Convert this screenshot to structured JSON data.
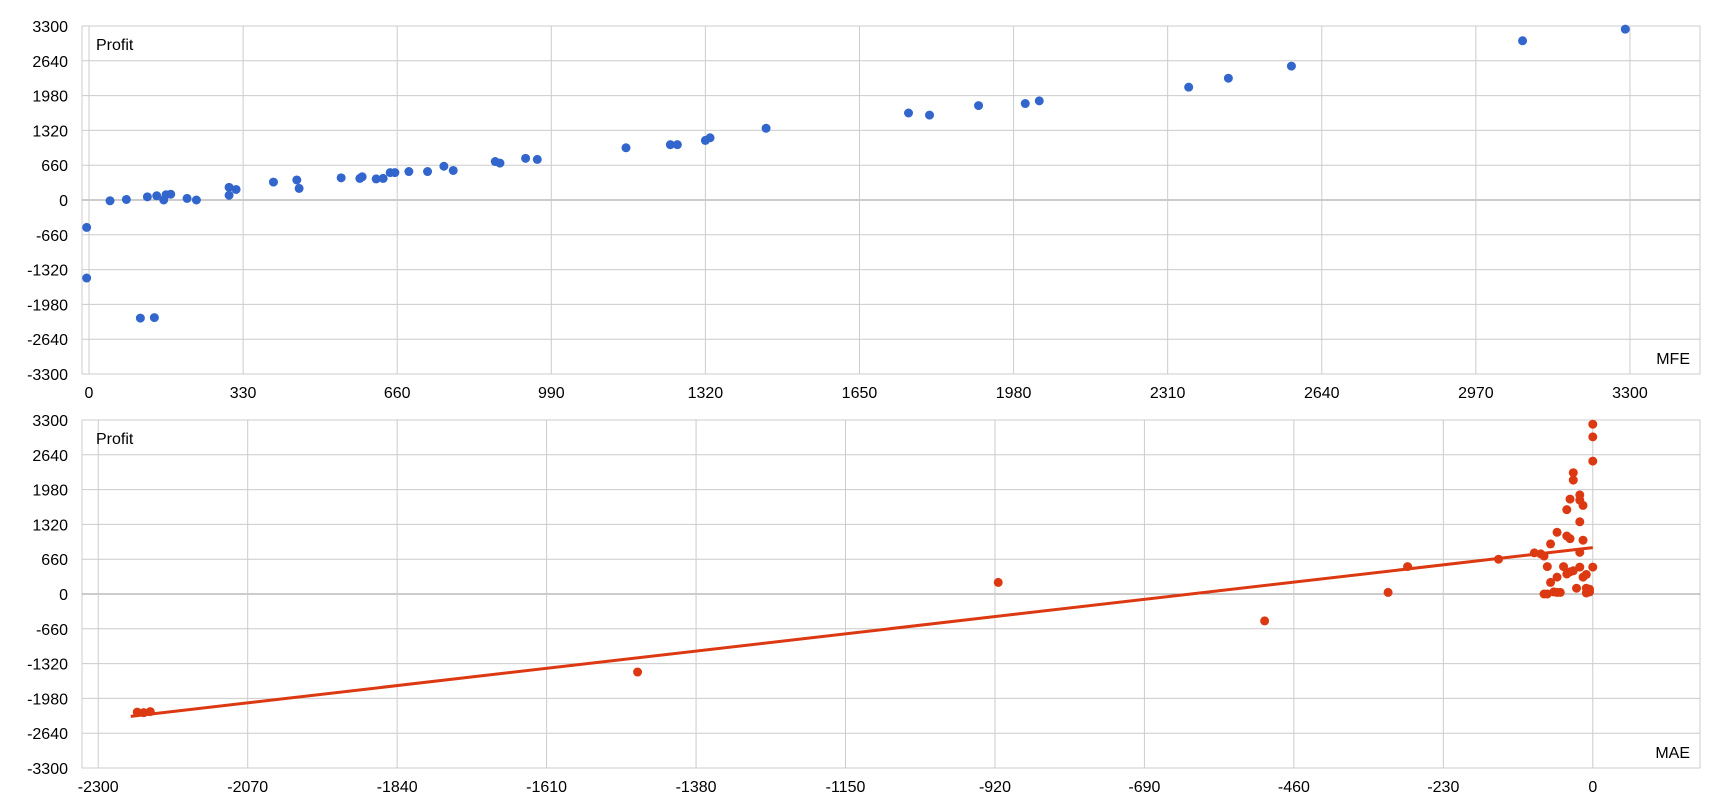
{
  "chart_data": [
    {
      "type": "scatter",
      "title": "",
      "ylabel": "Profit",
      "xlabel": "MFE",
      "xlim": [
        -15,
        3450
      ],
      "ylim": [
        -3300,
        3300
      ],
      "xticks": [
        "0",
        "330",
        "660",
        "990",
        "1320",
        "1650",
        "1980",
        "2310",
        "2640",
        "2970",
        "3300"
      ],
      "yticks": [
        "3300",
        "2640",
        "1980",
        "1320",
        "660",
        "0",
        "-660",
        "-1320",
        "-1980",
        "-2640",
        "-3300"
      ],
      "grid": true,
      "series": [
        {
          "color": "#3366cc",
          "points": [
            [
              -5,
              -520
            ],
            [
              -5,
              -1480
            ],
            [
              45,
              -15
            ],
            [
              80,
              10
            ],
            [
              110,
              -2240
            ],
            [
              125,
              60
            ],
            [
              140,
              -2230
            ],
            [
              145,
              80
            ],
            [
              160,
              0
            ],
            [
              165,
              100
            ],
            [
              175,
              110
            ],
            [
              210,
              30
            ],
            [
              230,
              0
            ],
            [
              300,
              240
            ],
            [
              300,
              90
            ],
            [
              315,
              200
            ],
            [
              395,
              340
            ],
            [
              445,
              380
            ],
            [
              450,
              220
            ],
            [
              540,
              420
            ],
            [
              580,
              410
            ],
            [
              585,
              440
            ],
            [
              615,
              400
            ],
            [
              630,
              410
            ],
            [
              645,
              520
            ],
            [
              655,
              520
            ],
            [
              685,
              540
            ],
            [
              725,
              540
            ],
            [
              760,
              640
            ],
            [
              780,
              560
            ],
            [
              870,
              730
            ],
            [
              880,
              700
            ],
            [
              935,
              790
            ],
            [
              960,
              770
            ],
            [
              1150,
              990
            ],
            [
              1245,
              1050
            ],
            [
              1260,
              1050
            ],
            [
              1320,
              1130
            ],
            [
              1330,
              1180
            ],
            [
              1450,
              1360
            ],
            [
              1755,
              1650
            ],
            [
              1800,
              1610
            ],
            [
              1905,
              1790
            ],
            [
              2005,
              1830
            ],
            [
              2035,
              1880
            ],
            [
              2355,
              2140
            ],
            [
              2440,
              2310
            ],
            [
              2575,
              2540
            ],
            [
              3070,
              3020
            ],
            [
              3290,
              3240
            ]
          ]
        }
      ]
    },
    {
      "type": "scatter",
      "title": "",
      "ylabel": "Profit",
      "xlabel": "MAE",
      "xlim": [
        -2325,
        165
      ],
      "ylim": [
        -3300,
        3300
      ],
      "xticks": [
        "-2300",
        "-2070",
        "-1840",
        "-1610",
        "-1380",
        "-1150",
        "-920",
        "-690",
        "-460",
        "-230",
        "0"
      ],
      "yticks": [
        "3300",
        "2640",
        "1980",
        "1320",
        "660",
        "0",
        "-660",
        "-1320",
        "-1980",
        "-2640",
        "-3300"
      ],
      "grid": true,
      "trendline": {
        "from": [
          -2250,
          -2320
        ],
        "to": [
          0,
          880
        ],
        "color": "#dc3912"
      },
      "series": [
        {
          "color": "#dc3912",
          "points": [
            [
              -2240,
              -2240
            ],
            [
              -2230,
              -2250
            ],
            [
              -2220,
              -2230
            ],
            [
              -1470,
              -1480
            ],
            [
              -915,
              220
            ],
            [
              -505,
              -510
            ],
            [
              -315,
              30
            ],
            [
              -285,
              520
            ],
            [
              -145,
              660
            ],
            [
              -90,
              780
            ],
            [
              -80,
              760
            ],
            [
              -75,
              720
            ],
            [
              -75,
              0
            ],
            [
              -70,
              0
            ],
            [
              -70,
              520
            ],
            [
              -65,
              950
            ],
            [
              -65,
              220
            ],
            [
              -60,
              40
            ],
            [
              -55,
              1170
            ],
            [
              -55,
              320
            ],
            [
              -55,
              30
            ],
            [
              -50,
              30
            ],
            [
              -45,
              520
            ],
            [
              -40,
              1600
            ],
            [
              -40,
              1100
            ],
            [
              -40,
              380
            ],
            [
              -35,
              1800
            ],
            [
              -35,
              1050
            ],
            [
              -35,
              420
            ],
            [
              -30,
              2300
            ],
            [
              -30,
              2160
            ],
            [
              -30,
              440
            ],
            [
              -25,
              110
            ],
            [
              -20,
              1880
            ],
            [
              -20,
              1780
            ],
            [
              -20,
              1370
            ],
            [
              -20,
              790
            ],
            [
              -20,
              510
            ],
            [
              -15,
              1680
            ],
            [
              -15,
              1020
            ],
            [
              -15,
              320
            ],
            [
              -10,
              110
            ],
            [
              -10,
              370
            ],
            [
              -10,
              20
            ],
            [
              -5,
              40
            ],
            [
              -5,
              90
            ],
            [
              0,
              3220
            ],
            [
              0,
              2980
            ],
            [
              0,
              2520
            ],
            [
              0,
              510
            ]
          ]
        }
      ]
    }
  ]
}
